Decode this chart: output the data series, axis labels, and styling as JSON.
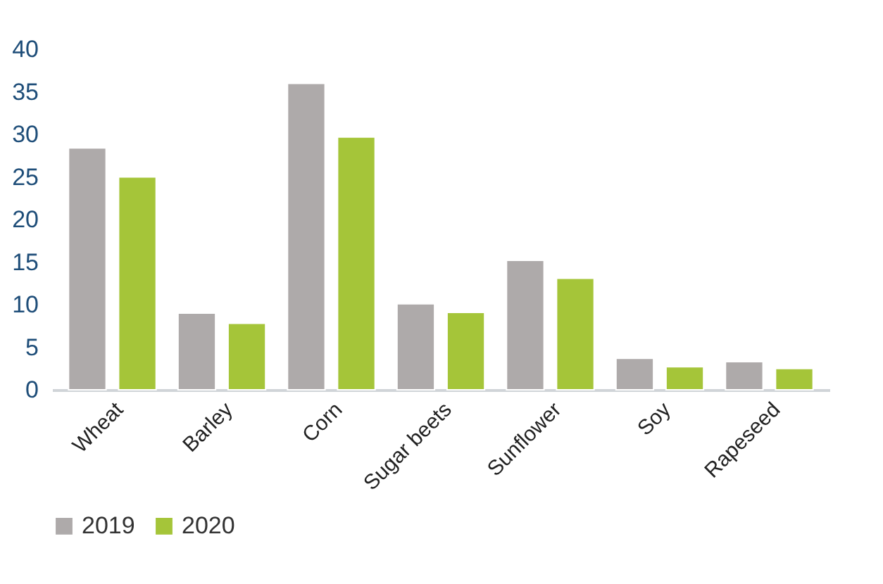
{
  "chart_data": {
    "type": "bar",
    "categories": [
      "Wheat",
      "Barley",
      "Corn",
      "Sugar beets",
      "Sunflower",
      "Soy",
      "Rapeseed"
    ],
    "series": [
      {
        "name": "2019",
        "color": "#aeaaaa",
        "values": [
          28.4,
          9.0,
          36.0,
          10.1,
          15.2,
          3.7,
          3.3
        ]
      },
      {
        "name": "2020",
        "color": "#a5c539",
        "values": [
          25.0,
          7.8,
          29.7,
          9.1,
          13.1,
          2.7,
          2.5
        ]
      }
    ],
    "ylim": [
      0,
      40
    ],
    "yticks": [
      0,
      5,
      10,
      15,
      20,
      25,
      30,
      35,
      40
    ],
    "grid": false,
    "legend": "bottom"
  }
}
